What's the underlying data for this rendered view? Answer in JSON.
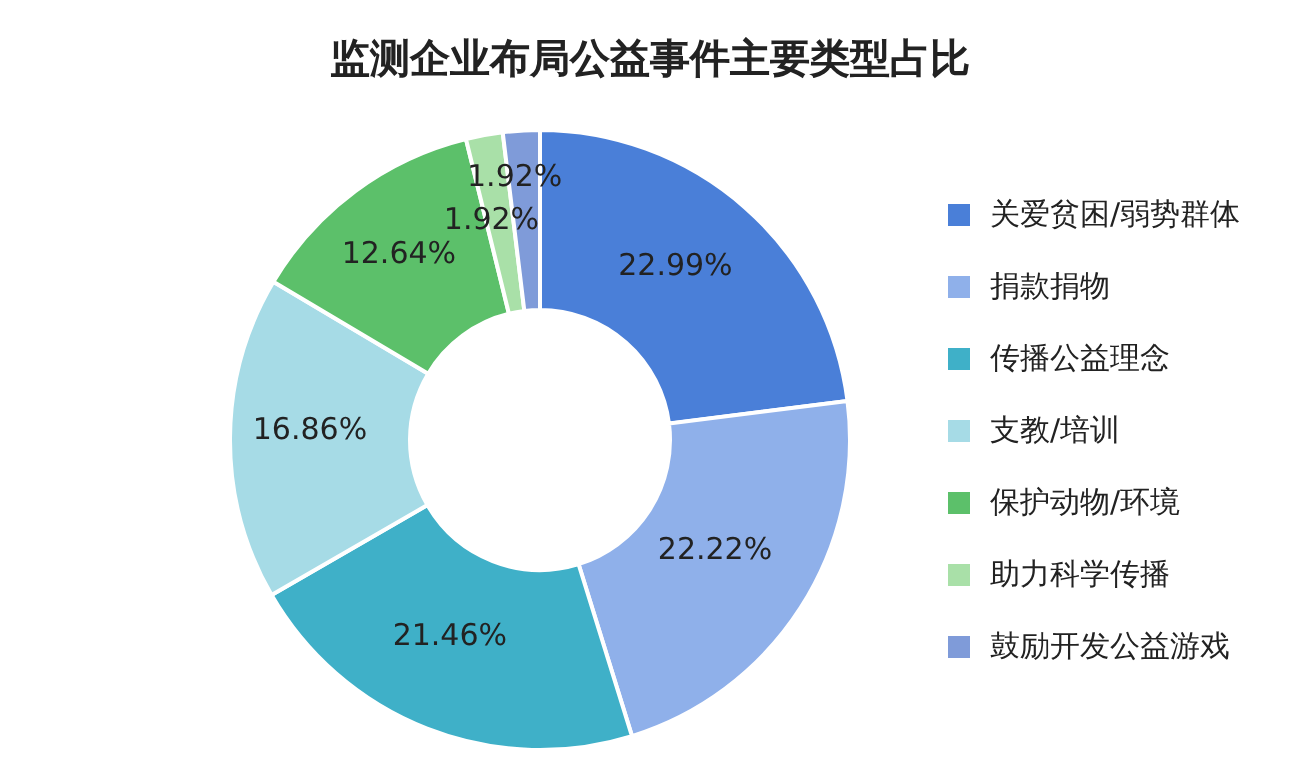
{
  "chart_data": {
    "type": "donut",
    "title": "监测企业布局公益事件主要类型占比",
    "categories": [
      "关爱贫困/弱势群体",
      "捐款捐物",
      "传播公益理念",
      "支教/培训",
      "保护动物/环境",
      "助力科学传播",
      "鼓励开发公益游戏"
    ],
    "values": [
      22.99,
      22.22,
      21.46,
      16.86,
      12.64,
      1.92,
      1.92
    ],
    "value_labels": [
      "22.99%",
      "22.22%",
      "21.46%",
      "16.86%",
      "12.64%",
      "1.92%",
      "1.92%"
    ],
    "colors": [
      "#4a7fd8",
      "#8fb0ea",
      "#3fb0c8",
      "#a6dbe6",
      "#5cc06a",
      "#a9e0a8",
      "#7f9bd9"
    ],
    "legend": "right"
  }
}
